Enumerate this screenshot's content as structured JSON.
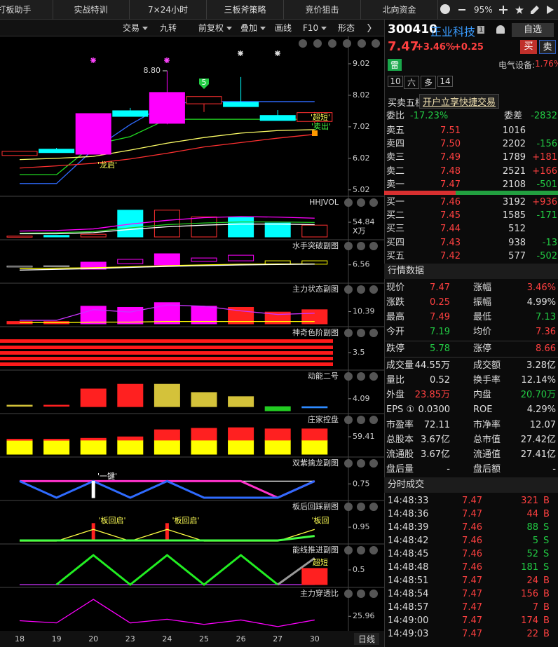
{
  "tabs": [
    "打板助手",
    "实战特训",
    "7×24小时",
    "三板斧策略",
    "竞价狙击",
    "北向资金"
  ],
  "zoom": "95%",
  "toolbar": [
    "交易",
    "九转",
    "前复权",
    "叠加",
    "画线",
    "F10",
    "形态"
  ],
  "day_button": "日线",
  "chart_data": [
    {
      "type": "candlestick",
      "categories": [
        "18",
        "19",
        "20",
        "23",
        "24",
        "25",
        "26",
        "27",
        "30"
      ],
      "open": [
        6.11,
        6.31,
        6.15,
        7.53,
        7.13,
        7.75,
        7.8,
        7.38,
        7.19
      ],
      "high": [
        6.24,
        6.35,
        7.44,
        7.62,
        8.8,
        7.98,
        8.6,
        7.55,
        7.49
      ],
      "low": [
        6.11,
        6.2,
        6.15,
        7.35,
        7.1,
        7.49,
        7.66,
        7.22,
        7.13
      ],
      "close": [
        6.24,
        6.2,
        7.44,
        7.35,
        8.11,
        7.98,
        7.66,
        7.22,
        7.47
      ],
      "candle_colors": [
        "#ff3030",
        "#00ffff",
        "#ff00ff",
        "#00ffff",
        "#ff00ff",
        "#ff3030",
        "#00ffff",
        "#00ffff",
        "#ff3030"
      ],
      "hollow": [
        true,
        false,
        false,
        false,
        false,
        true,
        false,
        false,
        true
      ],
      "high_label": "8.80",
      "ylim": [
        4.86,
        9.82
      ],
      "yticks": [
        9.02,
        8.02,
        7.02,
        6.02,
        5.02
      ],
      "lines": [
        {
          "color": "#2f6bff",
          "values": [
            5.22,
            5.22,
            6.3,
            7.09,
            7.75,
            7.82,
            7.82,
            7.82,
            7.82
          ]
        },
        {
          "color": "#22dd22",
          "values": [
            5.5,
            5.5,
            6.45,
            6.71,
            7.26,
            7.26,
            7.26,
            7.26,
            7.26
          ]
        },
        {
          "color": "#ffff66",
          "values": [
            5.98,
            6.02,
            6.08,
            6.28,
            6.5,
            6.68,
            6.82,
            6.9,
            6.93
          ]
        },
        {
          "color": "#ff3030",
          "values": [
            5.71,
            5.78,
            5.86,
            6.0,
            6.18,
            6.38,
            6.52,
            6.66,
            6.78
          ]
        }
      ],
      "annotations": [
        "'龙启'",
        "'超短'",
        "'卖出'",
        "5"
      ]
    },
    {
      "type": "indicator",
      "title": "HHJVOL",
      "unit_label": "X万",
      "ylim": [
        0,
        110
      ],
      "yticks": [
        54.84
      ],
      "series": [
        {
          "style": "bar",
          "colors": [
            "#ff3030",
            "#00ffff",
            "#ff3030",
            "#00ffff",
            "#ff3030",
            "#ff3030",
            "#00ffff",
            "#00ffff",
            "#ff3030"
          ],
          "hollow": [
            true,
            false,
            true,
            false,
            true,
            true,
            false,
            false,
            true
          ],
          "values": [
            3,
            6,
            10,
            100,
            100,
            75,
            75,
            52,
            44
          ]
        },
        {
          "style": "line",
          "color": "#ff00ff",
          "values": [
            22,
            24,
            30,
            48,
            62,
            72,
            76,
            74,
            70
          ]
        },
        {
          "style": "line",
          "color": "#22cc22",
          "values": [
            14,
            16,
            20,
            34,
            46,
            52,
            56,
            56,
            54
          ]
        },
        {
          "style": "line",
          "color": "#ffffff",
          "values": [
            12,
            12,
            16,
            28,
            38,
            44,
            48,
            48,
            46
          ]
        }
      ]
    },
    {
      "type": "indicator",
      "title": "水手突破副图",
      "ylim": [
        5.5,
        7.5
      ],
      "yticks": [
        6.56
      ],
      "series": [
        {
          "style": "bar",
          "colors": [
            "#aaaaaa",
            "#aaaaaa",
            "#ff00ff",
            "#ff00ff",
            "#ff00ff",
            "#ff00ff",
            "#ff00ff",
            "#ffff00",
            "#ffff00"
          ],
          "hollow": [
            true,
            true,
            false,
            true,
            false,
            true,
            true,
            true,
            true
          ],
          "lo": [
            6.42,
            6.45,
            6.26,
            6.64,
            6.55,
            6.79,
            6.83,
            6.6,
            6.6
          ],
          "values": [
            6.48,
            6.5,
            6.74,
            6.93,
            7.31,
            7.02,
            7.21,
            6.83,
            6.83
          ]
        },
        {
          "style": "line",
          "color": "#ffff00",
          "values": [
            6.3,
            6.33,
            6.36,
            6.42,
            6.5,
            6.55,
            6.6,
            6.62,
            6.62
          ]
        },
        {
          "style": "line",
          "color": "#ffffff",
          "values": [
            6.2,
            6.25,
            6.3,
            6.38,
            6.45,
            6.5,
            6.55,
            6.58,
            6.6
          ]
        }
      ]
    },
    {
      "type": "indicator",
      "title": "主力状态副图",
      "ylim": [
        0,
        25
      ],
      "yticks": [
        10.39
      ],
      "series": [
        {
          "style": "bar",
          "colors": [
            "#ff2020",
            "#ff2020",
            "#ff00ff",
            "#ff00ff",
            "#ff00ff",
            "#ff00ff",
            "#ff2020",
            "#ff2020",
            "#ff2020"
          ],
          "values": [
            2,
            2,
            15,
            14,
            18,
            15,
            14,
            10,
            12
          ]
        },
        {
          "style": "line",
          "color": "#cc33ff",
          "values": [
            3,
            3,
            12,
            10,
            16,
            15,
            11,
            8,
            9
          ]
        },
        {
          "style": "line",
          "color": "#ffff00",
          "values": [
            1,
            1,
            1.5,
            1.5,
            2,
            2,
            2,
            2,
            2
          ]
        }
      ]
    },
    {
      "type": "indicator",
      "title": "神奇色阶副图",
      "ylim": [
        0,
        7
      ],
      "yticks": [
        3.5
      ],
      "stripes": true,
      "series": []
    },
    {
      "type": "indicator",
      "title": "动能二号",
      "ylim": [
        0,
        10
      ],
      "yticks": [
        4.09
      ],
      "series": [
        {
          "style": "bar",
          "colors": [
            "#d4c23a",
            "#ff2020",
            "#ff2020",
            "#ff2020",
            "#d4c23a",
            "#d4c23a",
            "#d4c23a",
            "#22cc22",
            "#2f8bff"
          ],
          "lo": [
            1.6,
            1.6,
            1.4,
            1.4,
            1.4,
            1.4,
            1.4,
            0,
            1.0
          ],
          "values": [
            1.9,
            1.9,
            7.4,
            9.0,
            9.0,
            6.2,
            4.8,
            1.4,
            1.4
          ]
        }
      ]
    },
    {
      "type": "indicator",
      "title": "庄家控盘",
      "ylim": [
        0,
        100
      ],
      "yticks": [
        59.41
      ],
      "series": [
        {
          "style": "bar",
          "color": "#ffff00",
          "values": [
            48,
            48,
            48,
            48,
            48,
            48,
            48,
            48,
            48
          ]
        },
        {
          "style": "bar",
          "color": "#ff2020",
          "stacked": true,
          "values": [
            3,
            3,
            6,
            11,
            35,
            40,
            42,
            38,
            38
          ]
        }
      ]
    },
    {
      "type": "indicator",
      "title": "双紫擒龙副图",
      "ylim": [
        0,
        1.6
      ],
      "yticks": [
        0.75
      ],
      "series": [
        {
          "style": "line",
          "color": "#ffffff",
          "values": [
            0.9,
            0.9,
            0.9,
            0.9,
            0.9,
            0.9,
            0.9,
            0.9,
            0.9
          ]
        },
        {
          "style": "line",
          "color": "#ff33cc",
          "thick": true,
          "values": [
            0.9,
            0.9,
            0.9,
            0.9,
            0.9,
            0.9,
            0.9,
            0,
            0.9
          ]
        },
        {
          "style": "line",
          "color": "#2f6bff",
          "thick": true,
          "values": [
            0.9,
            0,
            0.9,
            0,
            0.9,
            0,
            0,
            0,
            0.9
          ]
        },
        {
          "style": "bar",
          "color": "#ffffff",
          "thin": true,
          "values": [
            null,
            null,
            0.9,
            null,
            null,
            null,
            null,
            null,
            null
          ]
        }
      ],
      "annotations": [
        "'一键'"
      ]
    },
    {
      "type": "indicator",
      "title": "板后回踩副图",
      "ylim": [
        0,
        2
      ],
      "yticks": [
        0.95
      ],
      "series": [
        {
          "style": "bar",
          "color": "#ff2020",
          "thin": true,
          "values": [
            null,
            null,
            1.2,
            null,
            1.2,
            null,
            null,
            null,
            null
          ]
        },
        {
          "style": "line",
          "color": "#ffff44",
          "values": [
            0,
            0,
            0.8,
            0,
            0.8,
            0,
            0,
            0,
            0.8
          ]
        },
        {
          "style": "line",
          "color": "#44ff44",
          "thick": true,
          "values": [
            0.05,
            0.05,
            0.05,
            0.05,
            0.05,
            0.05,
            0.05,
            0.05,
            0.35
          ]
        }
      ],
      "annotations": [
        "'板回启'",
        "'板回启'",
        "'板回"
      ]
    },
    {
      "type": "indicator",
      "title": "能线推进副图",
      "ylim": [
        0,
        1
      ],
      "yticks": [
        0.5
      ],
      "series": [
        {
          "style": "line",
          "color": "#cc33ff",
          "values": [
            0,
            0,
            0,
            0,
            0,
            0,
            0,
            0,
            0
          ]
        },
        {
          "style": "line",
          "color": "#22ee22",
          "thick": true,
          "values": [
            null,
            0,
            1,
            0,
            1,
            0,
            1,
            0,
            null
          ]
        },
        {
          "style": "line",
          "color": "#999999",
          "thick": true,
          "values": [
            null,
            null,
            null,
            null,
            null,
            null,
            null,
            0,
            0.9
          ]
        },
        {
          "style": "bar",
          "color": "#ff2020",
          "values": [
            null,
            null,
            null,
            null,
            null,
            null,
            null,
            null,
            0.55
          ]
        }
      ],
      "annotations": [
        "超短"
      ]
    },
    {
      "type": "indicator",
      "title": "主力穿透比",
      "ylim": [
        10,
        50
      ],
      "yticks": [
        25.96
      ],
      "series": [
        {
          "style": "line",
          "color": "#ff00ff",
          "values": [
            20,
            17,
            49,
            17,
            22,
            15,
            21,
            12,
            21
          ]
        }
      ]
    }
  ],
  "quote": {
    "code": "300410",
    "name": "正业科技",
    "badge": "1",
    "watch": "自选",
    "price": "7.47",
    "change_pct": "+3.46%",
    "change": "+0.25",
    "buy": "买",
    "sell": "卖",
    "tag": "雷",
    "sector": "电气设备:",
    "sector_change": "1.76%",
    "periods": [
      "10",
      "六",
      "多",
      "14"
    ],
    "book_title": "买卖五档",
    "book_promo": "开户立享快捷交易",
    "weibi_label": "委比",
    "weibi": "-17.23%",
    "weicha_label": "委差",
    "weicha": "-2832",
    "asks": [
      [
        "卖五",
        "7.51",
        "1016"
      ],
      [
        "卖四",
        "7.50",
        "2202",
        "-156"
      ],
      [
        "卖三",
        "7.49",
        "1789",
        "+181"
      ],
      [
        "卖二",
        "7.48",
        "2521",
        "+166"
      ],
      [
        "卖一",
        "7.47",
        "2108",
        "-501"
      ]
    ],
    "bids": [
      [
        "买一",
        "7.46",
        "3192",
        "+936"
      ],
      [
        "买二",
        "7.45",
        "1585",
        "-171"
      ],
      [
        "买三",
        "7.44",
        "512"
      ],
      [
        "买四",
        "7.43",
        "938",
        "-13"
      ],
      [
        "买五",
        "7.42",
        "577",
        "-502"
      ]
    ],
    "market_title": "行情数据",
    "market": [
      [
        "现价",
        "7.47",
        "涨幅",
        "3.46%"
      ],
      [
        "涨跌",
        "0.25",
        "振幅",
        "4.99%"
      ],
      [
        "最高",
        "7.49",
        "最低",
        "7.13"
      ],
      [
        "今开",
        "7.19",
        "均价",
        "7.36"
      ],
      [
        "跌停",
        "5.78",
        "涨停",
        "8.66"
      ],
      [
        "成交量",
        "44.55万",
        "成交额",
        "3.28亿"
      ],
      [
        "量比",
        "0.52",
        "换手率",
        "12.14%"
      ],
      [
        "外盘",
        "23.85万",
        "内盘",
        "20.70万"
      ],
      [
        "EPS ①",
        "0.0300",
        "ROE",
        "4.29%"
      ],
      [
        "市盈率",
        "72.11",
        "市净率",
        "12.07"
      ],
      [
        "总股本",
        "3.67亿",
        "总市值",
        "27.42亿"
      ],
      [
        "流通股",
        "3.67亿",
        "流通值",
        "27.41亿"
      ],
      [
        "盘后量",
        "-",
        "盘后额",
        "-"
      ]
    ],
    "market_colors": [
      [
        "#ff4040",
        "#ff4040"
      ],
      [
        "#ff4040",
        "#e0e0e0"
      ],
      [
        "#ff4040",
        "#22cc44"
      ],
      [
        "#22cc44",
        "#ff4040"
      ],
      [
        "#22cc44",
        "#ff4040"
      ],
      [
        "#e0e0e0",
        "#e0e0e0"
      ],
      [
        "#e0e0e0",
        "#e0e0e0"
      ],
      [
        "#ff4040",
        "#22cc44"
      ],
      [
        "#e0e0e0",
        "#e0e0e0"
      ],
      [
        "#e0e0e0",
        "#e0e0e0"
      ],
      [
        "#e0e0e0",
        "#e0e0e0"
      ],
      [
        "#e0e0e0",
        "#e0e0e0"
      ],
      [
        "#e0e0e0",
        "#e0e0e0"
      ]
    ],
    "trades_title": "分时成交",
    "trades": [
      [
        "14:48:33",
        "7.47",
        "321",
        "B"
      ],
      [
        "14:48:36",
        "7.47",
        "44",
        "B"
      ],
      [
        "14:48:39",
        "7.46",
        "88",
        "S"
      ],
      [
        "14:48:42",
        "7.46",
        "5",
        "S"
      ],
      [
        "14:48:45",
        "7.46",
        "52",
        "S"
      ],
      [
        "14:48:48",
        "7.46",
        "181",
        "S"
      ],
      [
        "14:48:51",
        "7.47",
        "24",
        "B"
      ],
      [
        "14:48:54",
        "7.47",
        "156",
        "B"
      ],
      [
        "14:48:57",
        "7.47",
        "7",
        "B"
      ],
      [
        "14:49:00",
        "7.47",
        "174",
        "B"
      ],
      [
        "14:49:03",
        "7.47",
        "22",
        "B"
      ]
    ],
    "trade_colors": [
      "#ff4040",
      "#ff4040",
      "#22cc44",
      "#22cc44",
      "#22cc44",
      "#22cc44",
      "#ff4040",
      "#ff4040",
      "#ff4040",
      "#ff4040",
      "#ff4040"
    ]
  }
}
